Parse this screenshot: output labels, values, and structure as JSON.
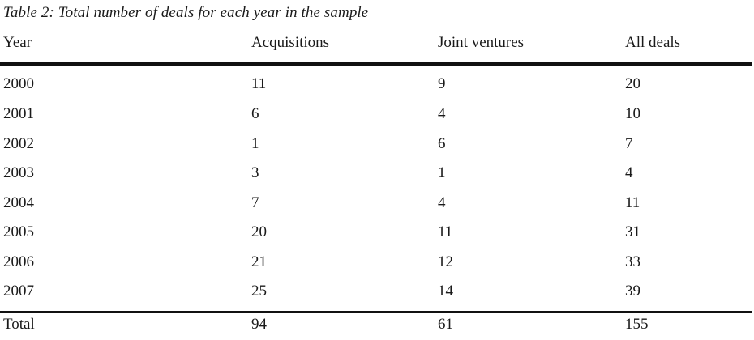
{
  "table": {
    "caption": "Table 2: Total number of deals for each year in the sample",
    "headers": [
      "Year",
      "Acquisitions",
      "Joint ventures",
      "All deals"
    ],
    "rows": [
      [
        "2000",
        "11",
        "9",
        "20"
      ],
      [
        "2001",
        "6",
        "4",
        "10"
      ],
      [
        "2002",
        "1",
        "6",
        "7"
      ],
      [
        "2003",
        "3",
        "1",
        "4"
      ],
      [
        "2004",
        "7",
        "4",
        "11"
      ],
      [
        "2005",
        "20",
        "11",
        "31"
      ],
      [
        "2006",
        "21",
        "12",
        "33"
      ],
      [
        "2007",
        "25",
        "14",
        "39"
      ]
    ],
    "total": [
      "Total",
      "94",
      "61",
      "155"
    ]
  }
}
